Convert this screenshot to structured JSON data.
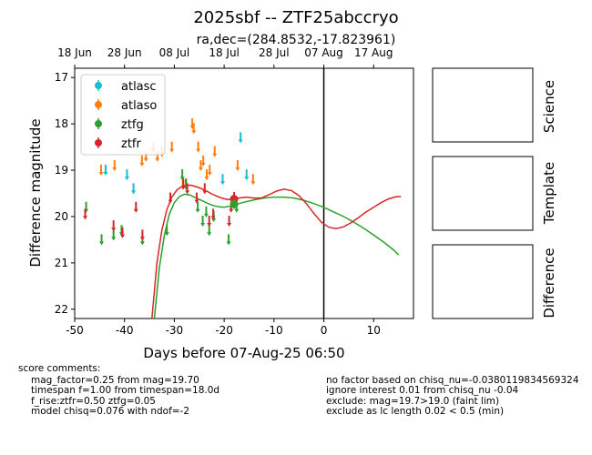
{
  "title": "2025sbf -- ZTF25abccryo",
  "subtitle": "ra,dec=(284.8532,-17.823961)",
  "xlabel": "Days before 07-Aug-25 06:50",
  "ylabel": "Difference magnitude",
  "top_ticks": [
    {
      "label": "18 Jun",
      "x": -50
    },
    {
      "label": "28 Jun",
      "x": -40
    },
    {
      "label": "08 Jul",
      "x": -30
    },
    {
      "label": "18 Jul",
      "x": -20
    },
    {
      "label": "28 Jul",
      "x": -10
    },
    {
      "label": "07 Aug",
      "x": 0
    },
    {
      "label": "17 Aug",
      "x": 10
    }
  ],
  "panels": [
    "Science",
    "Template",
    "Difference"
  ],
  "comments_header": "score comments:",
  "comments_left": [
    "mag_factor=0.25 from mag=19.70",
    "timespan f=1.00 from timespan=18.0d",
    "f_rise:ztfr=0.50 ztfg=0.05",
    "model chisq=0.076 with ndof=-2"
  ],
  "comments_right": [
    "no factor based on chisq_nu=-0.0380119834569324",
    "ignore interest 0.01 from chisq_nu -0.04",
    "exclude: mag=19.7>19.0 (faint lim)",
    "exclude as lc length 0.02 < 0.5 (min)"
  ],
  "chart_data": {
    "type": "scatter",
    "title": "2025sbf -- ZTF25abccryo",
    "subtitle": "ra,dec=(284.8532,-17.823961)",
    "xlabel": "Days before 07-Aug-25 06:50",
    "ylabel": "Difference magnitude",
    "xlim": [
      -50,
      18
    ],
    "ylim": [
      22.2,
      16.8
    ],
    "y_inverted": true,
    "xticks": [
      -50,
      -40,
      -30,
      -20,
      -10,
      0,
      10
    ],
    "yticks": [
      17,
      18,
      19,
      20,
      21,
      22
    ],
    "vline_x": 0,
    "legend_position": "upper-left",
    "series": [
      {
        "name": "atlasc",
        "color": "#17becf",
        "marker": "upper-limit",
        "points": [
          [
            -43.8,
            19.0
          ],
          [
            -39.5,
            19.1
          ],
          [
            -38.2,
            19.4
          ],
          [
            -20.3,
            19.2
          ],
          [
            -16.7,
            18.3
          ],
          [
            -15.5,
            19.1
          ]
        ]
      },
      {
        "name": "atlaso",
        "color": "#ff7f0e",
        "marker": "upper-limit",
        "points": [
          [
            -44.7,
            19.0
          ],
          [
            -42.0,
            18.9
          ],
          [
            -36.5,
            18.8
          ],
          [
            -35.7,
            18.7
          ],
          [
            -34.2,
            18.5
          ],
          [
            -33.4,
            18.7
          ],
          [
            -32.5,
            18.6
          ],
          [
            -30.5,
            18.5
          ],
          [
            -28.3,
            19.3
          ],
          [
            -27.6,
            19.3
          ],
          [
            -26.4,
            18.0
          ],
          [
            -26.1,
            18.1
          ],
          [
            -25.2,
            18.5
          ],
          [
            -24.7,
            18.9
          ],
          [
            -24.2,
            18.8
          ],
          [
            -23.5,
            19.1
          ],
          [
            -22.9,
            19.0
          ],
          [
            -21.9,
            18.6
          ],
          [
            -17.3,
            18.9
          ],
          [
            -14.2,
            19.2
          ]
        ]
      },
      {
        "name": "ztfg",
        "color": "#2ca02c",
        "marker": "upper-limit",
        "points": [
          [
            -47.7,
            19.8
          ],
          [
            -44.6,
            20.5
          ],
          [
            -42.2,
            20.4
          ],
          [
            -40.6,
            20.3
          ],
          [
            -36.4,
            20.5
          ],
          [
            -31.5,
            20.3
          ],
          [
            -28.4,
            19.1
          ],
          [
            -27.7,
            19.3
          ],
          [
            -25.3,
            19.8
          ],
          [
            -24.3,
            20.1
          ],
          [
            -23.6,
            19.9
          ],
          [
            -23.0,
            20.3
          ],
          [
            -22.1,
            20.0
          ],
          [
            -19.1,
            20.5
          ],
          [
            -17.5,
            19.8
          ]
        ]
      },
      {
        "name": "ztfr",
        "color": "#d62728",
        "marker": "upper-limit",
        "points": [
          [
            -47.9,
            19.95
          ],
          [
            -42.2,
            20.2
          ],
          [
            -40.4,
            20.35
          ],
          [
            -37.7,
            19.8
          ],
          [
            -36.4,
            20.4
          ],
          [
            -30.8,
            19.6
          ],
          [
            -28.2,
            19.3
          ],
          [
            -27.4,
            19.4
          ],
          [
            -25.5,
            19.6
          ],
          [
            -23.9,
            19.4
          ],
          [
            -23.0,
            20.1
          ],
          [
            -22.2,
            19.95
          ],
          [
            -19.0,
            20.1
          ],
          [
            -18.6,
            19.8
          ]
        ]
      }
    ],
    "detections": [
      {
        "series": "ztfr",
        "x": -18.0,
        "y": 19.62,
        "err": 0.15
      },
      {
        "series": "ztfg",
        "x": -18.0,
        "y": 19.73,
        "err": 0.1
      }
    ],
    "models": [
      {
        "series": "ztfg",
        "color": "#2ca02c",
        "points": [
          [
            -34.0,
            22.2
          ],
          [
            -33.0,
            21.1
          ],
          [
            -32.0,
            20.4
          ],
          [
            -31.0,
            19.95
          ],
          [
            -30.0,
            19.7
          ],
          [
            -29.0,
            19.57
          ],
          [
            -28.0,
            19.52
          ],
          [
            -27.0,
            19.53
          ],
          [
            -26.0,
            19.58
          ],
          [
            -25.0,
            19.63
          ],
          [
            -24.0,
            19.68
          ],
          [
            -23.0,
            19.73
          ],
          [
            -22.0,
            19.77
          ],
          [
            -21.0,
            19.79
          ],
          [
            -20.0,
            19.8
          ],
          [
            -19.0,
            19.78
          ],
          [
            -18.0,
            19.75
          ],
          [
            -16.0,
            19.69
          ],
          [
            -14.0,
            19.64
          ],
          [
            -12.0,
            19.6
          ],
          [
            -10.0,
            19.58
          ],
          [
            -8.0,
            19.58
          ],
          [
            -6.0,
            19.6
          ],
          [
            -4.0,
            19.65
          ],
          [
            -2.0,
            19.72
          ],
          [
            0.0,
            19.8
          ],
          [
            2.0,
            19.9
          ],
          [
            4.0,
            20.0
          ],
          [
            6.0,
            20.12
          ],
          [
            8.0,
            20.25
          ],
          [
            10.0,
            20.4
          ],
          [
            12.0,
            20.55
          ],
          [
            14.0,
            20.72
          ],
          [
            15.0,
            20.83
          ]
        ]
      },
      {
        "series": "ztfr",
        "color": "#d62728",
        "points": [
          [
            -34.5,
            22.2
          ],
          [
            -33.5,
            21.0
          ],
          [
            -32.5,
            20.3
          ],
          [
            -31.5,
            19.85
          ],
          [
            -30.5,
            19.58
          ],
          [
            -29.5,
            19.43
          ],
          [
            -28.5,
            19.35
          ],
          [
            -27.5,
            19.32
          ],
          [
            -26.5,
            19.33
          ],
          [
            -25.5,
            19.36
          ],
          [
            -24.5,
            19.4
          ],
          [
            -23.5,
            19.45
          ],
          [
            -22.5,
            19.51
          ],
          [
            -21.5,
            19.56
          ],
          [
            -20.5,
            19.6
          ],
          [
            -19.5,
            19.63
          ],
          [
            -18.5,
            19.63
          ],
          [
            -17.0,
            19.6
          ],
          [
            -15.5,
            19.58
          ],
          [
            -14.0,
            19.6
          ],
          [
            -12.5,
            19.6
          ],
          [
            -11.0,
            19.53
          ],
          [
            -9.5,
            19.45
          ],
          [
            -8.0,
            19.41
          ],
          [
            -6.5,
            19.44
          ],
          [
            -5.0,
            19.55
          ],
          [
            -3.5,
            19.72
          ],
          [
            -2.0,
            19.93
          ],
          [
            -0.5,
            20.12
          ],
          [
            1.0,
            20.23
          ],
          [
            2.5,
            20.26
          ],
          [
            4.0,
            20.22
          ],
          [
            5.5,
            20.13
          ],
          [
            7.0,
            20.02
          ],
          [
            8.5,
            19.9
          ],
          [
            10.0,
            19.8
          ],
          [
            11.5,
            19.7
          ],
          [
            13.0,
            19.62
          ],
          [
            14.5,
            19.57
          ],
          [
            15.5,
            19.57
          ]
        ]
      }
    ]
  }
}
